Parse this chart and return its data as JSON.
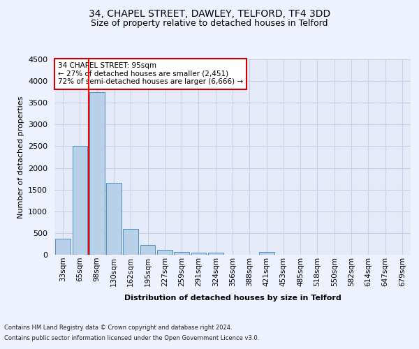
{
  "title": "34, CHAPEL STREET, DAWLEY, TELFORD, TF4 3DD",
  "subtitle": "Size of property relative to detached houses in Telford",
  "xlabel": "Distribution of detached houses by size in Telford",
  "ylabel": "Number of detached properties",
  "footer_line1": "Contains HM Land Registry data © Crown copyright and database right 2024.",
  "footer_line2": "Contains public sector information licensed under the Open Government Licence v3.0.",
  "annotation_line1": "34 CHAPEL STREET: 95sqm",
  "annotation_line2": "← 27% of detached houses are smaller (2,451)",
  "annotation_line3": "72% of semi-detached houses are larger (6,666) →",
  "bar_categories": [
    "33sqm",
    "65sqm",
    "98sqm",
    "130sqm",
    "162sqm",
    "195sqm",
    "227sqm",
    "259sqm",
    "291sqm",
    "324sqm",
    "356sqm",
    "388sqm",
    "421sqm",
    "453sqm",
    "485sqm",
    "518sqm",
    "550sqm",
    "582sqm",
    "614sqm",
    "647sqm",
    "679sqm"
  ],
  "bar_values": [
    370,
    2500,
    3750,
    1650,
    600,
    230,
    110,
    70,
    55,
    45,
    0,
    0,
    60,
    0,
    0,
    0,
    0,
    0,
    0,
    0,
    0
  ],
  "bar_color": "#b8d0e8",
  "bar_edge_color": "#5090c0",
  "red_line_x": 1.5,
  "ylim": [
    0,
    4500
  ],
  "yticks": [
    0,
    500,
    1000,
    1500,
    2000,
    2500,
    3000,
    3500,
    4000,
    4500
  ],
  "bg_color": "#eef2ff",
  "plot_bg_color": "#e4eaf8",
  "grid_color": "#c8d0e8",
  "title_fontsize": 10,
  "subtitle_fontsize": 9,
  "annotation_box_color": "#ffffff",
  "annotation_box_edge": "#cc0000"
}
